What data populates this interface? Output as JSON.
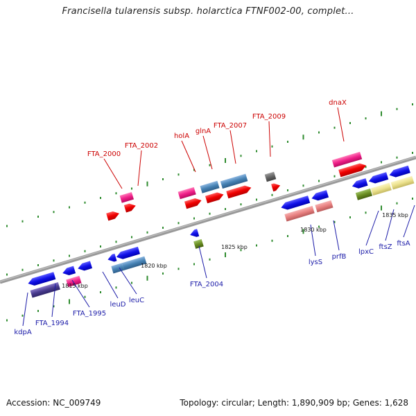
{
  "title": "Francisella tularensis subsp. holarctica FTNF002-00, complet...",
  "accession": "Accession: NC_009749",
  "summary": "Topology: circular; Length: 1,890,909 bp; Genes: 1,628",
  "colors": {
    "backbone": "#8a8a8a",
    "tick": "#2e8b2e",
    "label_red": "#cc0000",
    "label_blue": "#1a1aa8"
  },
  "scale_labels": [
    "1815 kbp",
    "1820 kbp",
    "1825 kbp",
    "1830 kbp",
    "1835 kbp"
  ],
  "genes": [
    {
      "name": "FTA_2000",
      "color": "red"
    },
    {
      "name": "FTA_2002",
      "color": "red"
    },
    {
      "name": "holA",
      "color": "red"
    },
    {
      "name": "glnA",
      "color": "red"
    },
    {
      "name": "FTA_2007",
      "color": "red"
    },
    {
      "name": "FTA_2009",
      "color": "red"
    },
    {
      "name": "dnaX",
      "color": "red"
    },
    {
      "name": "kdpA",
      "color": "blue"
    },
    {
      "name": "FTA_1994",
      "color": "blue"
    },
    {
      "name": "FTA_1995",
      "color": "blue"
    },
    {
      "name": "leuD",
      "color": "blue"
    },
    {
      "name": "leuC",
      "color": "blue"
    },
    {
      "name": "FTA_2004",
      "color": "blue"
    },
    {
      "name": "lysS",
      "color": "blue"
    },
    {
      "name": "prfB",
      "color": "blue"
    },
    {
      "name": "lpxC",
      "color": "blue"
    },
    {
      "name": "ftsZ",
      "color": "blue"
    },
    {
      "name": "ftsA",
      "color": "blue"
    }
  ]
}
